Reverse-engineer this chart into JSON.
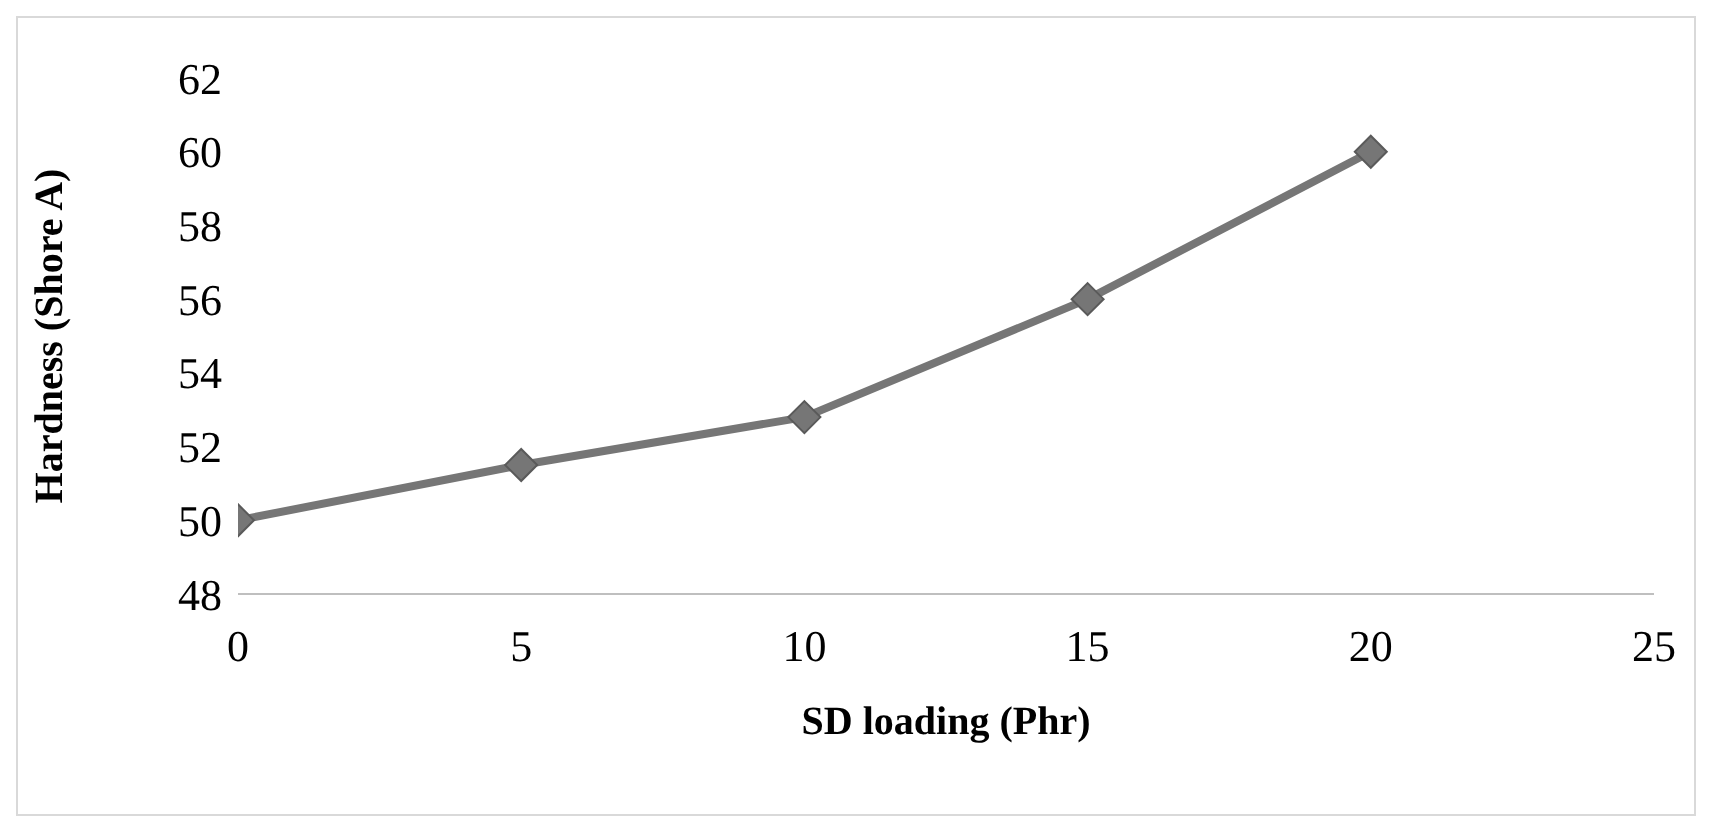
{
  "chart_data": {
    "type": "line",
    "xlabel": "SD loading (Phr)",
    "ylabel": "Hardness (Shore A)",
    "x": [
      0,
      5,
      10,
      15,
      20
    ],
    "series": [
      {
        "color": "#767676",
        "values": [
          50,
          51.5,
          52.8,
          56,
          60
        ]
      }
    ],
    "xlim": [
      0,
      25
    ],
    "xticks": [
      0,
      5,
      10,
      15,
      20,
      25
    ],
    "ylim": [
      48,
      62
    ],
    "yticks": [
      48,
      50,
      52,
      54,
      56,
      58,
      60,
      62
    ],
    "grid": false,
    "legend": false,
    "marker": "diamond",
    "line_style": "solid"
  }
}
